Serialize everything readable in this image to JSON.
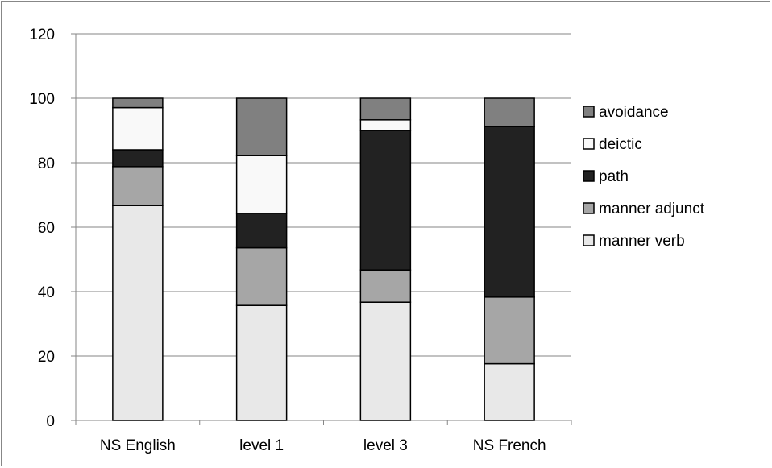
{
  "chart_data": {
    "type": "bar",
    "stacked": true,
    "title": "",
    "xlabel": "",
    "ylabel": "",
    "ylim": [
      0,
      120
    ],
    "yticks": [
      0,
      20,
      40,
      60,
      80,
      100,
      120
    ],
    "grid": true,
    "legend_position": "right",
    "categories": [
      "NS English",
      "level 1",
      "level 3",
      "NS French"
    ],
    "series": [
      {
        "name": "manner verb",
        "color": "#e8e8e8",
        "values": [
          66.7,
          35.7,
          36.7,
          17.6
        ]
      },
      {
        "name": "manner adjunct",
        "color": "#a6a6a6",
        "values": [
          12.1,
          17.9,
          10.0,
          20.7
        ]
      },
      {
        "name": "path",
        "color": "#222222",
        "values": [
          5.2,
          10.7,
          43.3,
          52.9
        ]
      },
      {
        "name": "deictic",
        "color": "#f9f9f9",
        "values": [
          13.1,
          17.9,
          3.3,
          0
        ]
      },
      {
        "name": "avoidance",
        "color": "#808080",
        "values": [
          2.9,
          17.8,
          6.7,
          8.8
        ]
      }
    ]
  }
}
